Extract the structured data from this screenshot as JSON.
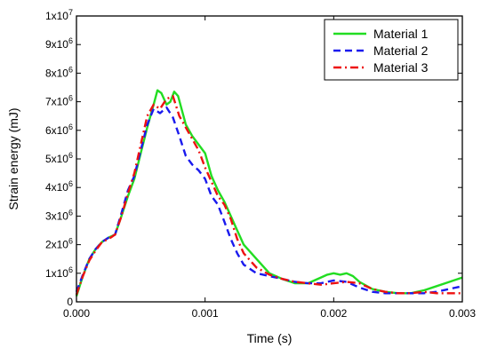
{
  "chart_data": {
    "type": "line",
    "title": "",
    "xlabel": "Time (s)",
    "ylabel": "Strain energy (mJ)",
    "xlim": [
      0,
      0.003
    ],
    "ylim": [
      0,
      10000000
    ],
    "x_ticks": [
      {
        "value": 0.0,
        "label": "0.000"
      },
      {
        "value": 0.001,
        "label": "0.001"
      },
      {
        "value": 0.002,
        "label": "0.002"
      },
      {
        "value": 0.003,
        "label": "0.003"
      }
    ],
    "y_ticks": [
      {
        "value": 0,
        "mant": "0",
        "exp": ""
      },
      {
        "value": 1000000,
        "mant": "1x10",
        "exp": "6"
      },
      {
        "value": 2000000,
        "mant": "2x10",
        "exp": "6"
      },
      {
        "value": 3000000,
        "mant": "3x10",
        "exp": "6"
      },
      {
        "value": 4000000,
        "mant": "4x10",
        "exp": "6"
      },
      {
        "value": 5000000,
        "mant": "5x10",
        "exp": "6"
      },
      {
        "value": 6000000,
        "mant": "6x10",
        "exp": "6"
      },
      {
        "value": 7000000,
        "mant": "7x10",
        "exp": "6"
      },
      {
        "value": 8000000,
        "mant": "8x10",
        "exp": "6"
      },
      {
        "value": 9000000,
        "mant": "9x10",
        "exp": "6"
      },
      {
        "value": 10000000,
        "mant": "1x10",
        "exp": "7"
      }
    ],
    "legend_position": "top-right",
    "series": [
      {
        "name": "Material 1",
        "color": "#22dd22",
        "dash": "solid",
        "x": [
          0,
          5e-05,
          0.0001,
          0.00015,
          0.0002,
          0.00025,
          0.0003,
          0.00035,
          0.0004,
          0.00045,
          0.0005,
          0.00055,
          0.0006,
          0.00063,
          0.00066,
          0.0007,
          0.00073,
          0.00076,
          0.00079,
          0.00085,
          0.0009,
          0.00095,
          0.001,
          0.00105,
          0.0011,
          0.00115,
          0.0012,
          0.00125,
          0.0013,
          0.0014,
          0.0015,
          0.0016,
          0.0017,
          0.0018,
          0.00185,
          0.0019,
          0.00195,
          0.002,
          0.00205,
          0.0021,
          0.00215,
          0.0022,
          0.0023,
          0.0024,
          0.0025,
          0.0026,
          0.0027,
          0.0028,
          0.0029,
          0.003
        ],
        "y": [
          200000,
          900000,
          1500000,
          1850000,
          2100000,
          2250000,
          2350000,
          3000000,
          3700000,
          4300000,
          5200000,
          6100000,
          6900000,
          7400000,
          7300000,
          6900000,
          7000000,
          7350000,
          7200000,
          6200000,
          5800000,
          5500000,
          5200000,
          4400000,
          3900000,
          3500000,
          3000000,
          2500000,
          2000000,
          1500000,
          1000000,
          800000,
          650000,
          650000,
          750000,
          850000,
          950000,
          1000000,
          950000,
          1000000,
          900000,
          700000,
          450000,
          350000,
          300000,
          300000,
          400000,
          550000,
          700000,
          850000
        ]
      },
      {
        "name": "Material 2",
        "color": "#1a1aee",
        "dash": "dash",
        "x": [
          0,
          5e-05,
          0.0001,
          0.00015,
          0.0002,
          0.00025,
          0.0003,
          0.00035,
          0.0004,
          0.00045,
          0.0005,
          0.00055,
          0.0006,
          0.00065,
          0.0007,
          0.00075,
          0.0008,
          0.00085,
          0.0009,
          0.00095,
          0.001,
          0.00105,
          0.0011,
          0.00115,
          0.0012,
          0.00125,
          0.0013,
          0.0014,
          0.0015,
          0.0016,
          0.0017,
          0.0018,
          0.0019,
          0.002,
          0.0021,
          0.0022,
          0.0023,
          0.0024,
          0.0025,
          0.0026,
          0.0027,
          0.0028,
          0.0029,
          0.003
        ],
        "y": [
          350000,
          950000,
          1500000,
          1850000,
          2100000,
          2250000,
          2350000,
          3100000,
          3900000,
          4400000,
          5300000,
          6200000,
          6750000,
          6600000,
          6800000,
          6450000,
          5800000,
          5100000,
          4800000,
          4600000,
          4300000,
          3700000,
          3400000,
          2800000,
          2200000,
          1700000,
          1300000,
          1000000,
          900000,
          800000,
          700000,
          650000,
          650000,
          750000,
          700000,
          500000,
          350000,
          300000,
          300000,
          300000,
          300000,
          350000,
          450000,
          550000
        ]
      },
      {
        "name": "Material 3",
        "color": "#ee1111",
        "dash": "dashdot",
        "x": [
          0,
          5e-05,
          0.0001,
          0.00015,
          0.0002,
          0.00025,
          0.0003,
          0.00035,
          0.0004,
          0.00045,
          0.0005,
          0.00055,
          0.0006,
          0.00065,
          0.0007,
          0.00075,
          0.0008,
          0.00085,
          0.0009,
          0.00095,
          0.001,
          0.00105,
          0.0011,
          0.00115,
          0.0012,
          0.00125,
          0.0013,
          0.0014,
          0.0015,
          0.0016,
          0.0017,
          0.0018,
          0.0019,
          0.002,
          0.0021,
          0.0022,
          0.0023,
          0.0024,
          0.0025,
          0.0026,
          0.0027,
          0.0028,
          0.0029,
          0.003
        ],
        "y": [
          250000,
          900000,
          1450000,
          1800000,
          2100000,
          2200000,
          2350000,
          3000000,
          3800000,
          4500000,
          5500000,
          6500000,
          6900000,
          6750000,
          7100000,
          7200000,
          6500000,
          6100000,
          5700000,
          5300000,
          4700000,
          4200000,
          3700000,
          3400000,
          2900000,
          2200000,
          1700000,
          1200000,
          950000,
          800000,
          700000,
          650000,
          600000,
          650000,
          700000,
          650000,
          450000,
          350000,
          300000,
          300000,
          350000,
          300000,
          300000,
          300000
        ]
      }
    ]
  }
}
